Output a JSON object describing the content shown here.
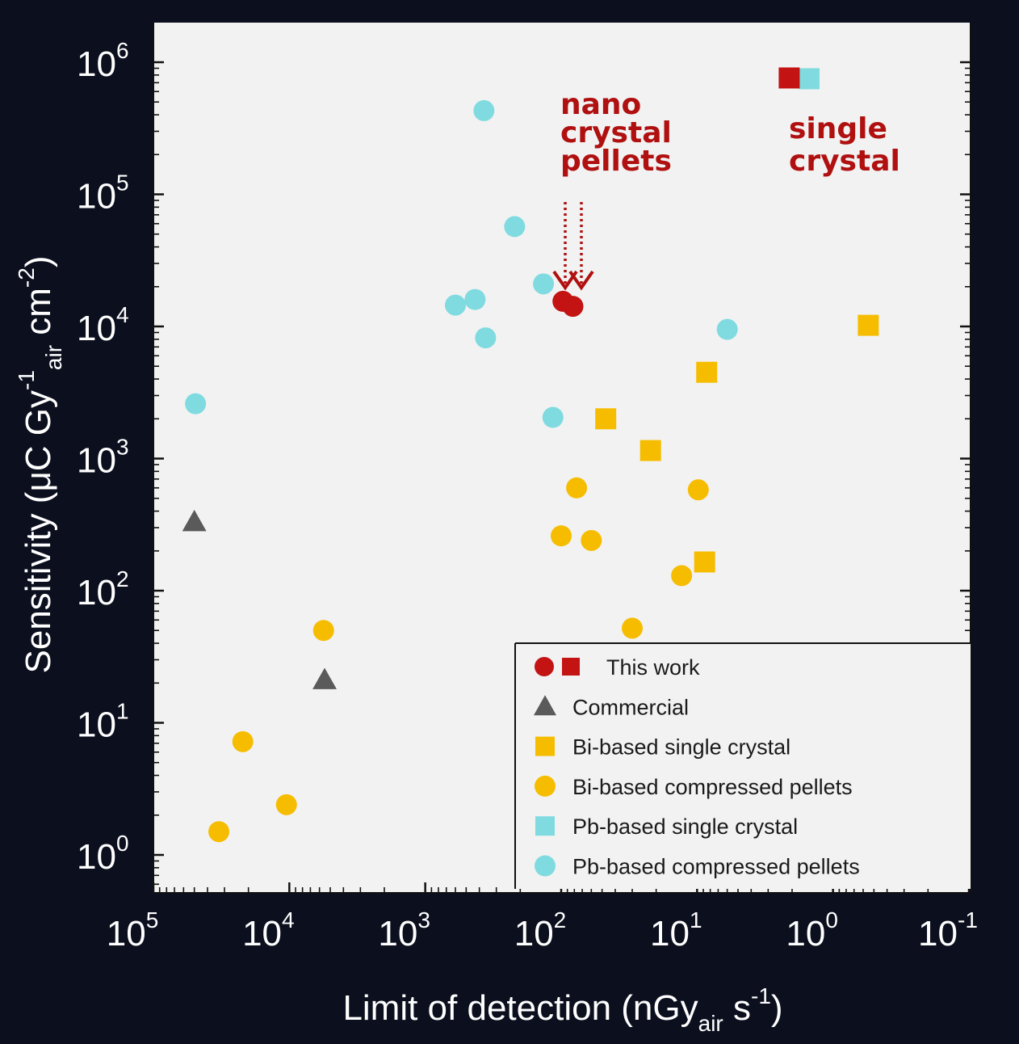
{
  "chart_data": {
    "type": "scatter",
    "xlabel": {
      "main": "Limit of detection (nGy",
      "sub": "air",
      "mid": " s",
      "sup": "-1",
      "end": ")"
    },
    "ylabel": {
      "main": "Sensitivity (μC Gy",
      "sup1": "-1",
      "sub": "air",
      "mid": " cm",
      "sup2": "-2",
      "end": ")"
    },
    "x_scale": "log-reversed",
    "y_scale": "log",
    "xlim": [
      100000,
      0.1
    ],
    "ylim": [
      0.4,
      2000000
    ],
    "x_ticks": [
      {
        "value": 100000,
        "base": "10",
        "exp": "5"
      },
      {
        "value": 10000,
        "base": "10",
        "exp": "4"
      },
      {
        "value": 1000,
        "base": "10",
        "exp": "3"
      },
      {
        "value": 100,
        "base": "10",
        "exp": "2"
      },
      {
        "value": 10,
        "base": "10",
        "exp": "1"
      },
      {
        "value": 1,
        "base": "10",
        "exp": "0"
      },
      {
        "value": 0.1,
        "base": "10",
        "exp": "-1"
      }
    ],
    "y_ticks": [
      {
        "value": 1,
        "base": "10",
        "exp": "0"
      },
      {
        "value": 10,
        "base": "10",
        "exp": "1"
      },
      {
        "value": 100,
        "base": "10",
        "exp": "2"
      },
      {
        "value": 1000,
        "base": "10",
        "exp": "3"
      },
      {
        "value": 10000,
        "base": "10",
        "exp": "4"
      },
      {
        "value": 100000,
        "base": "10",
        "exp": "5"
      },
      {
        "value": 1000000,
        "base": "10",
        "exp": "6"
      }
    ],
    "series": [
      {
        "name": "Commercial",
        "marker": "triangle",
        "color": "#5a5a5a",
        "points": [
          [
            50000,
            330
          ],
          [
            5500,
            21
          ]
        ]
      },
      {
        "name": "Bi-based single crystal",
        "marker": "square",
        "color": "#f6bd00",
        "points": [
          [
            47,
            2000
          ],
          [
            22,
            1150
          ],
          [
            8.5,
            4500
          ],
          [
            8.8,
            165
          ],
          [
            0.55,
            10200
          ]
        ]
      },
      {
        "name": "Bi-based compressed pellets",
        "marker": "circle",
        "color": "#f6bd00",
        "points": [
          [
            5600,
            50
          ],
          [
            22000,
            7.2
          ],
          [
            10500,
            2.4
          ],
          [
            33000,
            1.5
          ],
          [
            77,
            600
          ],
          [
            100,
            260
          ],
          [
            60,
            240
          ],
          [
            30,
            52
          ],
          [
            13,
            130
          ],
          [
            9.8,
            580
          ]
        ]
      },
      {
        "name": "Pb-based single crystal",
        "marker": "square",
        "color": "#7fdbe0",
        "points": [
          [
            1.5,
            750000
          ]
        ]
      },
      {
        "name": "Pb-based compressed pellets",
        "marker": "circle",
        "color": "#7fdbe0",
        "points": [
          [
            49000,
            2600
          ],
          [
            370,
            430000
          ],
          [
            220,
            57000
          ],
          [
            600,
            14500
          ],
          [
            430,
            16000
          ],
          [
            360,
            8200
          ],
          [
            135,
            21000
          ],
          [
            115,
            2050
          ],
          [
            6,
            9500
          ]
        ]
      },
      {
        "name": "This work",
        "marker": "circle",
        "color": "#c41313",
        "points": [
          [
            97,
            15500
          ],
          [
            82,
            14200
          ]
        ]
      },
      {
        "name": "This work",
        "marker": "square",
        "color": "#c41313",
        "points": [
          [
            2.1,
            760000
          ]
        ]
      }
    ],
    "annotations": [
      {
        "lines": [
          "nano",
          "crystal",
          "pellets"
        ]
      },
      {
        "lines": [
          "single",
          "crystal"
        ]
      }
    ],
    "legend": {
      "position": "bottom-right",
      "entries": [
        {
          "label": "This work",
          "markers": [
            {
              "shape": "circle",
              "color": "#c41313"
            },
            {
              "shape": "square",
              "color": "#c41313"
            }
          ]
        },
        {
          "label": "Commercial",
          "markers": [
            {
              "shape": "triangle",
              "color": "#5a5a5a"
            }
          ]
        },
        {
          "label": "Bi-based single crystal",
          "markers": [
            {
              "shape": "square",
              "color": "#f6bd00"
            }
          ]
        },
        {
          "label": "Bi-based compressed pellets",
          "markers": [
            {
              "shape": "circle",
              "color": "#f6bd00"
            }
          ]
        },
        {
          "label": "Pb-based single crystal",
          "markers": [
            {
              "shape": "square",
              "color": "#7fdbe0"
            }
          ]
        },
        {
          "label": "Pb-based compressed pellets",
          "markers": [
            {
              "shape": "circle",
              "color": "#7fdbe0"
            }
          ]
        }
      ]
    },
    "colors": {
      "background": "#0b0f1e",
      "plot_area": "#f2f2f2",
      "annotation": "#b01010"
    }
  }
}
